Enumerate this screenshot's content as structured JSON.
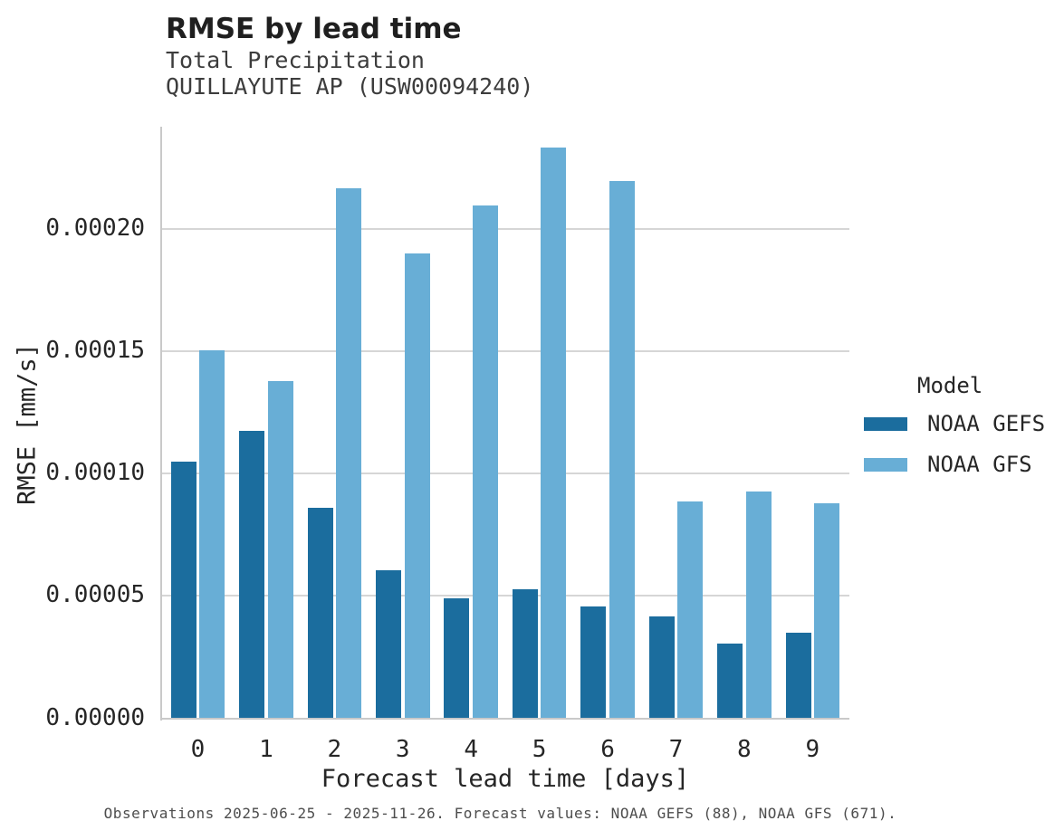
{
  "header": {
    "title": "RMSE by lead time",
    "subtitle1": "Total Precipitation",
    "subtitle2": "QUILLAYUTE AP (USW00094240)"
  },
  "legend": {
    "title": "Model",
    "entries": [
      {
        "label": "NOAA GEFS",
        "color": "#1b6d9e"
      },
      {
        "label": "NOAA GFS",
        "color": "#68aed6"
      }
    ]
  },
  "footer": {
    "text": "Observations 2025-06-25 - 2025-11-26. Forecast values: NOAA GEFS (88), NOAA GFS (671)."
  },
  "chart_data": {
    "type": "bar",
    "title": "RMSE by lead time",
    "subtitle": [
      "Total Precipitation",
      "QUILLAYUTE AP (USW00094240)"
    ],
    "xlabel": "Forecast lead time [days]",
    "ylabel": "RMSE [mm/s]",
    "categories": [
      "0",
      "1",
      "2",
      "3",
      "4",
      "5",
      "6",
      "7",
      "8",
      "9"
    ],
    "series": [
      {
        "name": "NOAA GEFS",
        "color": "#1b6d9e",
        "values": [
          0.000105,
          0.0001175,
          8.6e-05,
          6.05e-05,
          4.9e-05,
          5.28e-05,
          4.55e-05,
          4.15e-05,
          3.05e-05,
          3.51e-05
        ]
      },
      {
        "name": "NOAA GFS",
        "color": "#68aed6",
        "values": [
          0.0001503,
          0.0001378,
          0.0002165,
          0.00019,
          0.0002095,
          0.000233,
          0.0002195,
          8.87e-05,
          9.28e-05,
          8.77e-05
        ]
      }
    ],
    "ylim": [
      0,
      0.000242
    ],
    "yticks": [
      0,
      5e-05,
      0.0001,
      0.00015,
      0.0002
    ],
    "ytick_labels": [
      "0.00000",
      "0.00005",
      "0.00010",
      "0.00015",
      "0.00020"
    ],
    "grid": "horizontal",
    "legend_position": "right"
  }
}
